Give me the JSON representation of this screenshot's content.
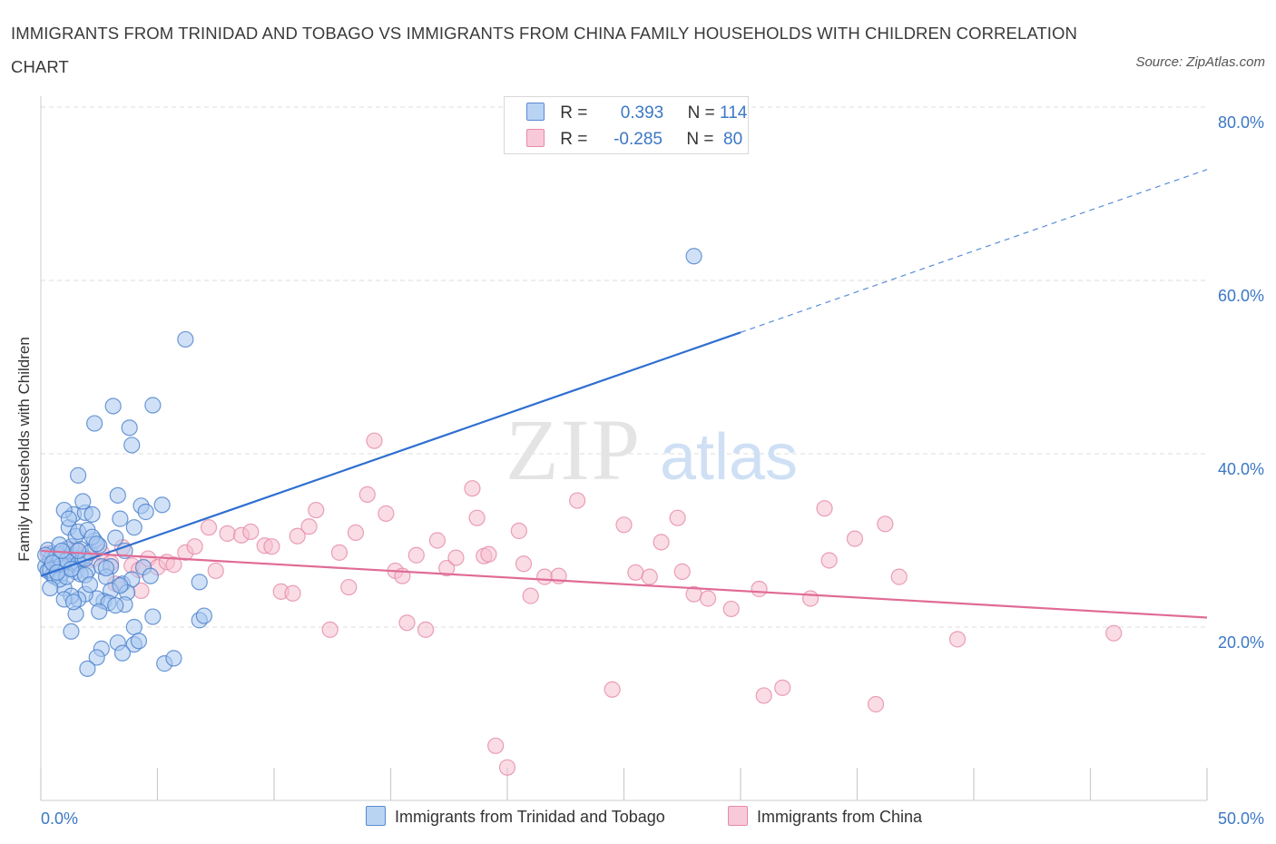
{
  "header": {
    "title": "IMMIGRANTS FROM TRINIDAD AND TOBAGO VS IMMIGRANTS FROM CHINA FAMILY HOUSEHOLDS WITH CHILDREN CORRELATION CHART",
    "source": "Source: ZipAtlas.com"
  },
  "legend": {
    "row1": {
      "r_label": "R =",
      "r_value": "0.393",
      "n_label": "N =",
      "n_value": "114"
    },
    "row2": {
      "r_label": "R =",
      "r_value": "-0.285",
      "n_label": "N =",
      "n_value": "80"
    }
  },
  "watermark": {
    "zip": "ZIP",
    "atlas": "atlas"
  },
  "colors": {
    "blue_fill": "#a9c8f0",
    "blue_stroke": "#4a7fcb",
    "blue_line": "#2f6fd0",
    "pink_fill": "#f6bfd0",
    "pink_stroke": "#e58aa8",
    "pink_line": "#e06b96",
    "tick": "#3b78c4",
    "grid": "#dedede"
  },
  "chart_data": {
    "type": "scatter",
    "title": "IMMIGRANTS FROM TRINIDAD AND TOBAGO VS IMMIGRANTS FROM CHINA FAMILY HOUSEHOLDS WITH CHILDREN CORRELATION CHART",
    "xlabel": "",
    "ylabel": "Family Households with Children",
    "xlim": [
      0,
      50
    ],
    "ylim": [
      0,
      80
    ],
    "x_tick_labels": [
      "0.0%",
      "50.0%"
    ],
    "y_ticks": [
      20,
      40,
      60,
      80
    ],
    "y_tick_labels": [
      "20.0%",
      "40.0%",
      "60.0%",
      "80.0%"
    ],
    "grid": true,
    "legend_position": "top-center",
    "series": [
      {
        "name": "Immigrants from Trinidad and Tobago",
        "color": "#4a7fcb",
        "r": 0.393,
        "n": 114,
        "trend": {
          "x0": 0,
          "y0": 25.9,
          "x1": 30,
          "y1": 54.0,
          "dashed_to_x": 50,
          "dashed_to_y": 72.8
        },
        "points": [
          [
            0.2,
            27.0
          ],
          [
            0.3,
            26.5
          ],
          [
            0.4,
            27.8
          ],
          [
            0.5,
            28.5
          ],
          [
            0.6,
            26.8
          ],
          [
            0.7,
            27.3
          ],
          [
            0.8,
            28.0
          ],
          [
            0.9,
            26.2
          ],
          [
            1.0,
            27.5
          ],
          [
            1.1,
            29.0
          ],
          [
            1.2,
            26.9
          ],
          [
            1.3,
            28.2
          ],
          [
            1.4,
            27.6
          ],
          [
            0.3,
            28.9
          ],
          [
            0.5,
            26.0
          ],
          [
            0.6,
            27.9
          ],
          [
            0.8,
            27.1
          ],
          [
            1.0,
            28.6
          ],
          [
            1.2,
            27.0
          ],
          [
            1.5,
            26.4
          ],
          [
            0.4,
            26.6
          ],
          [
            0.7,
            28.4
          ],
          [
            0.9,
            27.2
          ],
          [
            1.1,
            27.7
          ],
          [
            0.2,
            28.3
          ],
          [
            1.3,
            29.3
          ],
          [
            1.6,
            27.3
          ],
          [
            1.8,
            28.0
          ],
          [
            2.0,
            26.5
          ],
          [
            0.6,
            25.8
          ],
          [
            0.8,
            29.5
          ],
          [
            1.0,
            24.5
          ],
          [
            1.2,
            31.5
          ],
          [
            1.4,
            33.0
          ],
          [
            1.5,
            30.5
          ],
          [
            1.7,
            29.0
          ],
          [
            1.9,
            27.9
          ],
          [
            2.1,
            28.6
          ],
          [
            2.3,
            30.0
          ],
          [
            2.5,
            29.4
          ],
          [
            1.0,
            33.5
          ],
          [
            1.2,
            32.5
          ],
          [
            1.6,
            31.0
          ],
          [
            1.9,
            33.2
          ],
          [
            2.0,
            31.2
          ],
          [
            2.2,
            30.4
          ],
          [
            1.8,
            34.5
          ],
          [
            2.2,
            33.0
          ],
          [
            2.4,
            29.6
          ],
          [
            2.6,
            27.0
          ],
          [
            1.6,
            37.5
          ],
          [
            2.3,
            43.5
          ],
          [
            3.1,
            45.5
          ],
          [
            3.8,
            43.0
          ],
          [
            3.9,
            41.0
          ],
          [
            4.8,
            45.6
          ],
          [
            6.2,
            53.2
          ],
          [
            3.3,
            35.2
          ],
          [
            4.3,
            34.0
          ],
          [
            5.2,
            34.1
          ],
          [
            4.5,
            33.3
          ],
          [
            3.4,
            32.5
          ],
          [
            4.0,
            31.5
          ],
          [
            3.2,
            30.3
          ],
          [
            3.6,
            28.8
          ],
          [
            3.0,
            27.0
          ],
          [
            2.8,
            25.8
          ],
          [
            3.5,
            25.0
          ],
          [
            3.9,
            25.5
          ],
          [
            4.4,
            26.9
          ],
          [
            4.7,
            25.9
          ],
          [
            3.7,
            24.0
          ],
          [
            3.0,
            24.2
          ],
          [
            3.4,
            24.8
          ],
          [
            2.7,
            23.0
          ],
          [
            2.4,
            23.3
          ],
          [
            1.9,
            23.8
          ],
          [
            1.6,
            23.2
          ],
          [
            1.3,
            23.6
          ],
          [
            1.0,
            23.2
          ],
          [
            0.8,
            25.5
          ],
          [
            2.9,
            22.8
          ],
          [
            3.6,
            22.6
          ],
          [
            4.8,
            21.2
          ],
          [
            6.8,
            20.8
          ],
          [
            7.0,
            21.3
          ],
          [
            4.0,
            20.0
          ],
          [
            2.5,
            21.8
          ],
          [
            1.5,
            21.5
          ],
          [
            1.3,
            19.5
          ],
          [
            3.3,
            18.2
          ],
          [
            4.0,
            18.0
          ],
          [
            4.2,
            18.4
          ],
          [
            2.6,
            17.5
          ],
          [
            3.5,
            17.0
          ],
          [
            2.4,
            16.5
          ],
          [
            5.3,
            15.8
          ],
          [
            5.7,
            16.4
          ],
          [
            2.0,
            15.2
          ],
          [
            6.8,
            25.2
          ],
          [
            3.2,
            22.5
          ],
          [
            1.1,
            25.8
          ],
          [
            0.5,
            27.4
          ],
          [
            1.7,
            26.1
          ],
          [
            2.8,
            26.8
          ],
          [
            1.4,
            22.9
          ],
          [
            1.9,
            26.0
          ],
          [
            0.4,
            24.5
          ],
          [
            2.1,
            24.9
          ],
          [
            0.9,
            28.8
          ],
          [
            1.3,
            26.7
          ],
          [
            0.7,
            26.3
          ],
          [
            1.6,
            28.8
          ],
          [
            28.0,
            62.8
          ]
        ]
      },
      {
        "name": "Immigrants from China",
        "color": "#e58aa8",
        "r": -0.285,
        "n": 80,
        "trend": {
          "x0": 0,
          "y0": 28.8,
          "x1": 50,
          "y1": 21.1
        },
        "points": [
          [
            0.3,
            28.5
          ],
          [
            0.6,
            27.8
          ],
          [
            1.0,
            27.2
          ],
          [
            1.5,
            29.0
          ],
          [
            1.8,
            28.3
          ],
          [
            2.2,
            27.8
          ],
          [
            2.6,
            28.6
          ],
          [
            3.0,
            27.4
          ],
          [
            3.5,
            29.2
          ],
          [
            3.9,
            27.1
          ],
          [
            4.2,
            26.6
          ],
          [
            4.6,
            27.9
          ],
          [
            5.0,
            26.9
          ],
          [
            5.4,
            27.5
          ],
          [
            5.7,
            27.2
          ],
          [
            6.2,
            28.6
          ],
          [
            6.6,
            29.3
          ],
          [
            7.2,
            31.5
          ],
          [
            7.5,
            26.5
          ],
          [
            8.0,
            30.8
          ],
          [
            8.6,
            30.6
          ],
          [
            9.0,
            31.0
          ],
          [
            9.6,
            29.4
          ],
          [
            9.9,
            29.3
          ],
          [
            10.3,
            24.1
          ],
          [
            10.8,
            23.9
          ],
          [
            11.0,
            30.5
          ],
          [
            11.5,
            31.6
          ],
          [
            11.8,
            33.5
          ],
          [
            12.4,
            19.7
          ],
          [
            12.8,
            28.6
          ],
          [
            13.2,
            24.6
          ],
          [
            13.5,
            30.9
          ],
          [
            14.0,
            35.3
          ],
          [
            14.3,
            41.5
          ],
          [
            14.8,
            33.1
          ],
          [
            15.2,
            26.5
          ],
          [
            15.5,
            25.9
          ],
          [
            15.7,
            20.5
          ],
          [
            16.1,
            28.3
          ],
          [
            16.5,
            19.7
          ],
          [
            17.0,
            30.0
          ],
          [
            17.4,
            26.8
          ],
          [
            17.8,
            28.0
          ],
          [
            18.5,
            36.0
          ],
          [
            18.7,
            32.6
          ],
          [
            19.0,
            28.2
          ],
          [
            19.2,
            28.4
          ],
          [
            20.0,
            3.8
          ],
          [
            20.5,
            31.1
          ],
          [
            20.7,
            27.3
          ],
          [
            21.0,
            23.6
          ],
          [
            21.6,
            25.8
          ],
          [
            22.2,
            25.9
          ],
          [
            23.0,
            34.6
          ],
          [
            24.5,
            12.8
          ],
          [
            25.0,
            31.8
          ],
          [
            25.5,
            26.3
          ],
          [
            26.1,
            25.8
          ],
          [
            26.6,
            29.8
          ],
          [
            27.3,
            32.6
          ],
          [
            27.5,
            26.4
          ],
          [
            28.0,
            23.8
          ],
          [
            28.6,
            23.3
          ],
          [
            29.6,
            22.1
          ],
          [
            30.8,
            24.4
          ],
          [
            31.0,
            12.1
          ],
          [
            31.8,
            13.0
          ],
          [
            33.0,
            23.3
          ],
          [
            33.6,
            33.7
          ],
          [
            33.8,
            27.7
          ],
          [
            34.9,
            30.2
          ],
          [
            35.8,
            11.1
          ],
          [
            36.2,
            31.9
          ],
          [
            36.8,
            25.8
          ],
          [
            39.3,
            18.6
          ],
          [
            46.0,
            19.3
          ],
          [
            19.5,
            6.3
          ],
          [
            3.2,
            25.0
          ],
          [
            4.3,
            24.2
          ]
        ]
      }
    ]
  }
}
